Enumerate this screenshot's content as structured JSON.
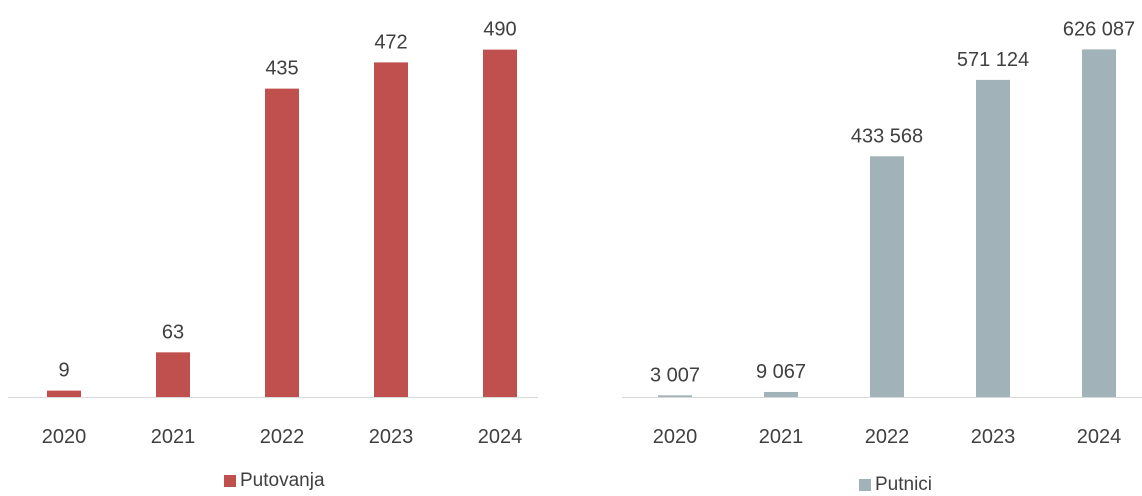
{
  "chart_data": [
    {
      "type": "bar",
      "categories": [
        "2020",
        "2021",
        "2022",
        "2023",
        "2024"
      ],
      "series": [
        {
          "name": "Putovanja",
          "values": [
            9,
            63,
            435,
            472,
            490
          ]
        }
      ],
      "data_labels": [
        "9",
        "63",
        "435",
        "472",
        "490"
      ],
      "color": "#c0504d",
      "ylim": [
        0,
        560
      ],
      "grid": false,
      "legend": "bottom-center"
    },
    {
      "type": "bar",
      "categories": [
        "2020",
        "2021",
        "2022",
        "2023",
        "2024"
      ],
      "series": [
        {
          "name": "Putnici",
          "values": [
            3007,
            9067,
            433568,
            571124,
            626087
          ]
        }
      ],
      "data_labels": [
        "3 007",
        "9 067",
        "433 568",
        "571 124",
        "626 087"
      ],
      "color": "#a1b3b9",
      "ylim": [
        0,
        715000
      ],
      "grid": false,
      "legend": "bottom-center"
    }
  ]
}
